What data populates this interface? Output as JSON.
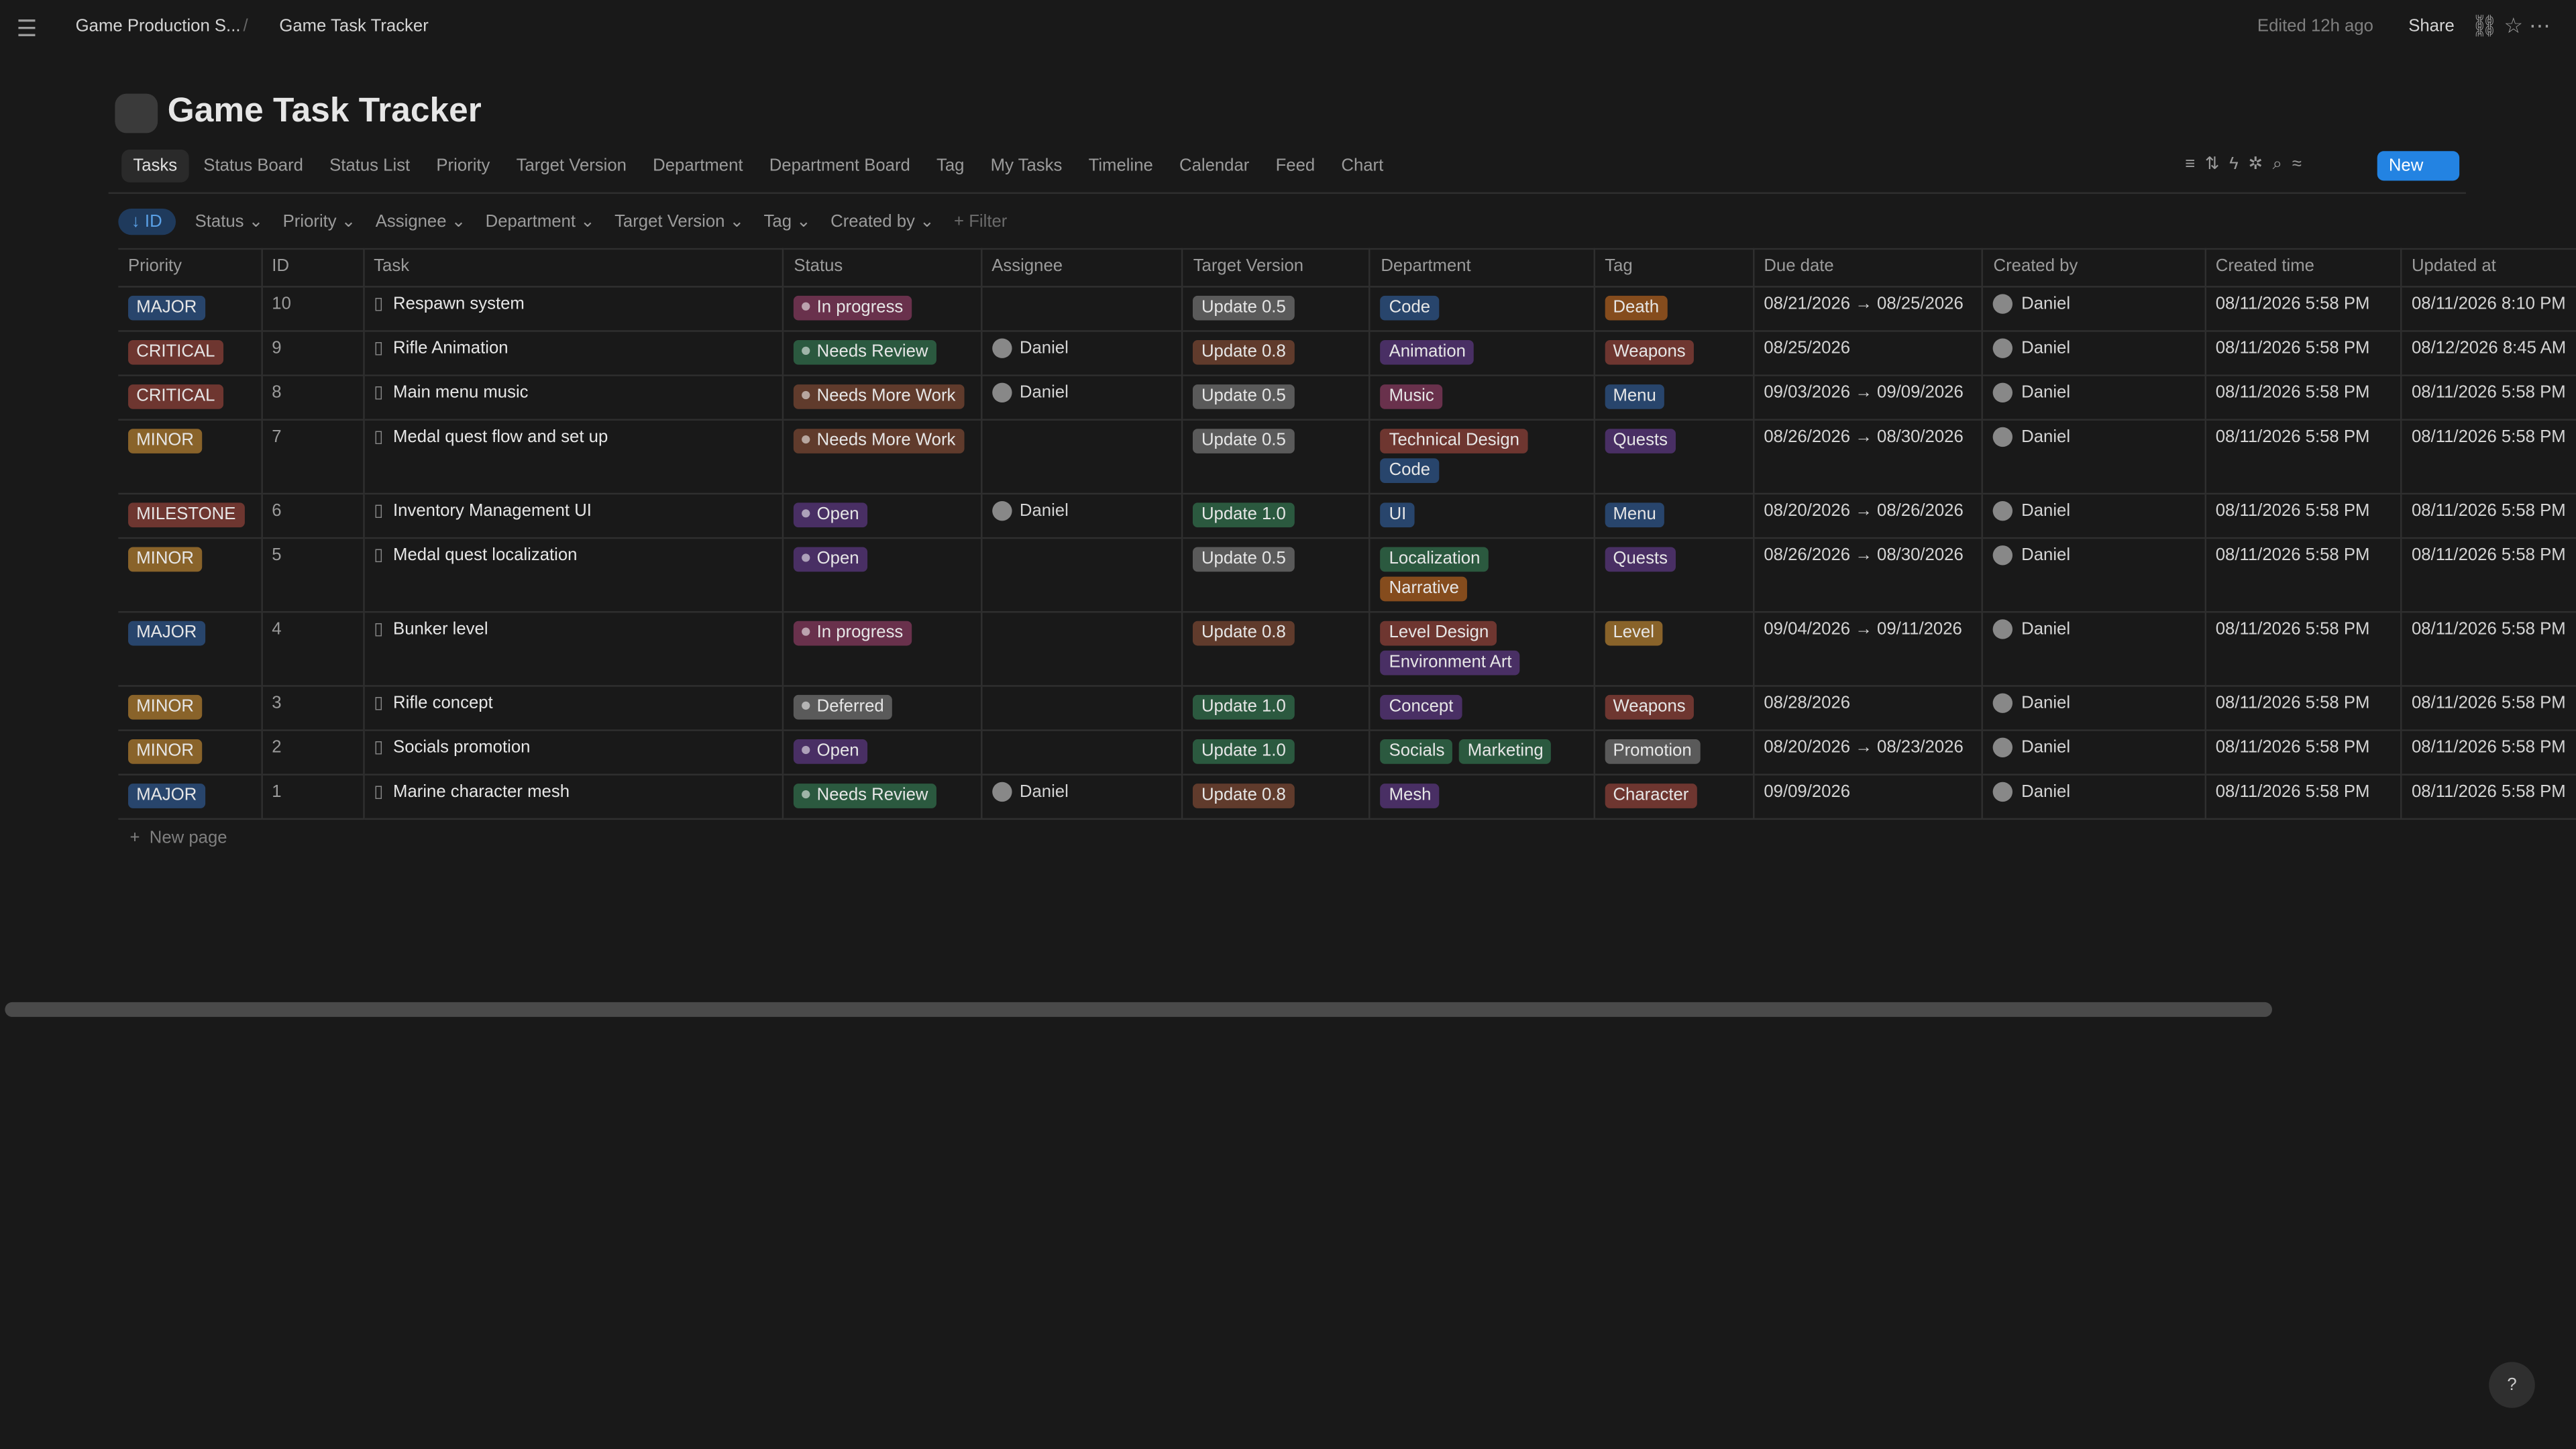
{
  "breadcrumb": [
    "Game Production S...",
    "Game Task Tracker"
  ],
  "topbar": {
    "edited": "Edited 12h ago",
    "share": "Share"
  },
  "title": "Game Task Tracker",
  "views": [
    "Tasks",
    "Status Board",
    "Status List",
    "Priority",
    "Target Version",
    "Department",
    "Department Board",
    "Tag",
    "My Tasks",
    "Timeline",
    "Calendar",
    "Feed",
    "Chart"
  ],
  "new_button": "New",
  "filters": {
    "sort": "ID",
    "items": [
      "Status",
      "Priority",
      "Assignee",
      "Department",
      "Target Version",
      "Tag",
      "Created by"
    ],
    "add": "+ Filter"
  },
  "columns": [
    "Priority",
    "ID",
    "Task",
    "Status",
    "Assignee",
    "Target Version",
    "Department",
    "Tag",
    "Due date",
    "Created by",
    "Created time",
    "Updated at"
  ],
  "rows": [
    {
      "priority": {
        "text": "MAJOR",
        "color": "blue"
      },
      "id": "10",
      "task": "Respawn system",
      "status": {
        "text": "In progress",
        "color": "pink"
      },
      "assignee": null,
      "version": {
        "text": "Update 0.5",
        "color": "gray"
      },
      "department": [
        {
          "text": "Code",
          "color": "blue"
        }
      ],
      "tag": [
        {
          "text": "Death",
          "color": "orange"
        }
      ],
      "due": "08/21/2026 → 08/25/2026",
      "created_by": "Daniel",
      "created": "08/11/2026 5:58 PM",
      "updated": "08/11/2026 8:10 PM"
    },
    {
      "priority": {
        "text": "CRITICAL",
        "color": "red"
      },
      "id": "9",
      "task": "Rifle Animation",
      "status": {
        "text": "Needs Review",
        "color": "green"
      },
      "assignee": "Daniel",
      "version": {
        "text": "Update 0.8",
        "color": "brown"
      },
      "department": [
        {
          "text": "Animation",
          "color": "purple"
        }
      ],
      "tag": [
        {
          "text": "Weapons",
          "color": "red"
        }
      ],
      "due": "08/25/2026",
      "created_by": "Daniel",
      "created": "08/11/2026 5:58 PM",
      "updated": "08/12/2026 8:45 AM"
    },
    {
      "priority": {
        "text": "CRITICAL",
        "color": "red"
      },
      "id": "8",
      "task": "Main menu music",
      "status": {
        "text": "Needs More Work",
        "color": "brown"
      },
      "assignee": "Daniel",
      "version": {
        "text": "Update 0.5",
        "color": "gray"
      },
      "department": [
        {
          "text": "Music",
          "color": "pink"
        }
      ],
      "tag": [
        {
          "text": "Menu",
          "color": "blue"
        }
      ],
      "due": "09/03/2026 → 09/09/2026",
      "created_by": "Daniel",
      "created": "08/11/2026 5:58 PM",
      "updated": "08/11/2026 5:58 PM"
    },
    {
      "priority": {
        "text": "MINOR",
        "color": "yellow"
      },
      "id": "7",
      "task": "Medal quest flow and set up",
      "status": {
        "text": "Needs More Work",
        "color": "brown"
      },
      "assignee": null,
      "version": {
        "text": "Update 0.5",
        "color": "gray"
      },
      "department": [
        {
          "text": "Technical Design",
          "color": "red"
        },
        {
          "text": "Code",
          "color": "blue"
        }
      ],
      "tag": [
        {
          "text": "Quests",
          "color": "purple"
        }
      ],
      "due": "08/26/2026 → 08/30/2026",
      "created_by": "Daniel",
      "created": "08/11/2026 5:58 PM",
      "updated": "08/11/2026 5:58 PM"
    },
    {
      "priority": {
        "text": "MILESTONE",
        "color": "red"
      },
      "id": "6",
      "task": "Inventory Management UI",
      "status": {
        "text": "Open",
        "color": "purple"
      },
      "assignee": "Daniel",
      "version": {
        "text": "Update 1.0",
        "color": "green"
      },
      "department": [
        {
          "text": "UI",
          "color": "blue"
        }
      ],
      "tag": [
        {
          "text": "Menu",
          "color": "blue"
        }
      ],
      "due": "08/20/2026 → 08/26/2026",
      "created_by": "Daniel",
      "created": "08/11/2026 5:58 PM",
      "updated": "08/11/2026 5:58 PM"
    },
    {
      "priority": {
        "text": "MINOR",
        "color": "yellow"
      },
      "id": "5",
      "task": "Medal quest localization",
      "status": {
        "text": "Open",
        "color": "purple"
      },
      "assignee": null,
      "version": {
        "text": "Update 0.5",
        "color": "gray"
      },
      "department": [
        {
          "text": "Localization",
          "color": "green"
        },
        {
          "text": "Narrative",
          "color": "orange"
        }
      ],
      "tag": [
        {
          "text": "Quests",
          "color": "purple"
        }
      ],
      "due": "08/26/2026 → 08/30/2026",
      "created_by": "Daniel",
      "created": "08/11/2026 5:58 PM",
      "updated": "08/11/2026 5:58 PM"
    },
    {
      "priority": {
        "text": "MAJOR",
        "color": "blue"
      },
      "id": "4",
      "task": "Bunker level",
      "status": {
        "text": "In progress",
        "color": "pink"
      },
      "assignee": null,
      "version": {
        "text": "Update 0.8",
        "color": "brown"
      },
      "department": [
        {
          "text": "Level Design",
          "color": "red"
        },
        {
          "text": "Environment Art",
          "color": "purple"
        }
      ],
      "tag": [
        {
          "text": "Level",
          "color": "yellow"
        }
      ],
      "due": "09/04/2026 → 09/11/2026",
      "created_by": "Daniel",
      "created": "08/11/2026 5:58 PM",
      "updated": "08/11/2026 5:58 PM"
    },
    {
      "priority": {
        "text": "MINOR",
        "color": "yellow"
      },
      "id": "3",
      "task": "Rifle concept",
      "status": {
        "text": "Deferred",
        "color": "gray"
      },
      "assignee": null,
      "version": {
        "text": "Update 1.0",
        "color": "green"
      },
      "department": [
        {
          "text": "Concept",
          "color": "purple"
        }
      ],
      "tag": [
        {
          "text": "Weapons",
          "color": "red"
        }
      ],
      "due": "08/28/2026",
      "created_by": "Daniel",
      "created": "08/11/2026 5:58 PM",
      "updated": "08/11/2026 5:58 PM"
    },
    {
      "priority": {
        "text": "MINOR",
        "color": "yellow"
      },
      "id": "2",
      "task": "Socials promotion",
      "status": {
        "text": "Open",
        "color": "purple"
      },
      "assignee": null,
      "version": {
        "text": "Update 1.0",
        "color": "green"
      },
      "department": [
        {
          "text": "Socials",
          "color": "green"
        },
        {
          "text": "Marketing",
          "color": "green"
        }
      ],
      "tag": [
        {
          "text": "Promotion",
          "color": "gray"
        }
      ],
      "due": "08/20/2026 → 08/23/2026",
      "created_by": "Daniel",
      "created": "08/11/2026 5:58 PM",
      "updated": "08/11/2026 5:58 PM"
    },
    {
      "priority": {
        "text": "MAJOR",
        "color": "blue"
      },
      "id": "1",
      "task": "Marine character mesh",
      "status": {
        "text": "Needs Review",
        "color": "green"
      },
      "assignee": "Daniel",
      "version": {
        "text": "Update 0.8",
        "color": "brown"
      },
      "department": [
        {
          "text": "Mesh",
          "color": "purple"
        }
      ],
      "tag": [
        {
          "text": "Character",
          "color": "red"
        }
      ],
      "due": "09/09/2026",
      "created_by": "Daniel",
      "created": "08/11/2026 5:58 PM",
      "updated": "08/11/2026 5:58 PM"
    }
  ],
  "new_page": "New page"
}
